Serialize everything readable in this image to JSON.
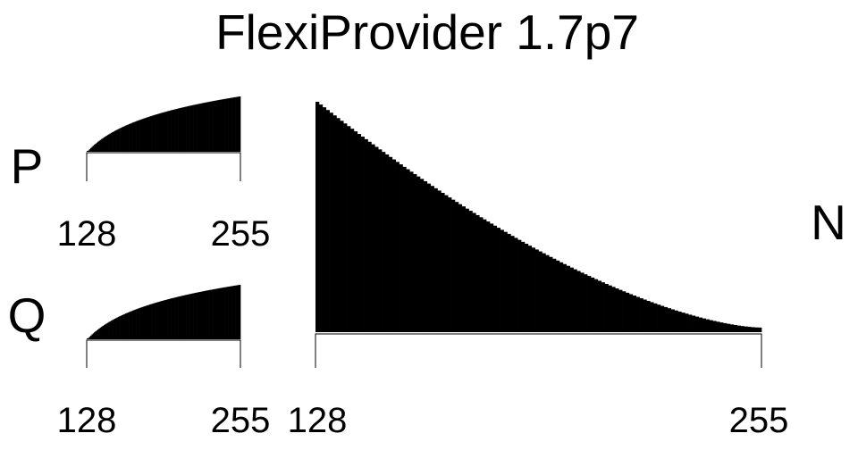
{
  "title": "FlexiProvider 1.7p7",
  "colors": {
    "background": "#ffffff",
    "bars": "#000000",
    "axis": "#000000"
  },
  "chart_data": [
    {
      "type": "bar",
      "id": "p",
      "label": "P",
      "x_range": [
        128,
        255
      ],
      "x_ticks": [
        "128",
        "255"
      ],
      "shape": "increasing-concave",
      "rel_start": 0.0,
      "rel_end": 1.0,
      "note_values": "Histogram of counts per value 128..255; bars rise from ~0 at 128 to the maximum at 255 following a concave (logarithmic-like) curve."
    },
    {
      "type": "bar",
      "id": "q",
      "label": "Q",
      "x_range": [
        128,
        255
      ],
      "x_ticks": [
        "128",
        "255"
      ],
      "shape": "increasing-concave",
      "rel_start": 0.0,
      "rel_end": 1.0
    },
    {
      "type": "bar",
      "id": "n",
      "label": "N",
      "x_range": [
        128,
        255
      ],
      "x_ticks": [
        "128",
        "255"
      ],
      "shape": "decreasing-convex",
      "rel_start": 1.0,
      "rel_end": 0.02
    }
  ]
}
